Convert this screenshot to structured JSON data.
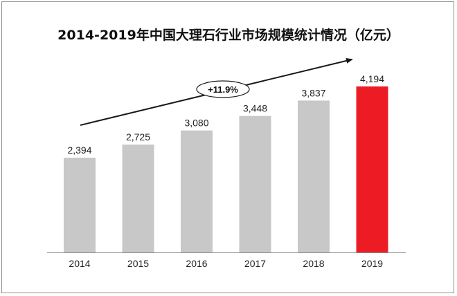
{
  "chart_data": {
    "type": "bar",
    "title": "2014-2019年中国大理石行业市场规模统计情况（亿元）",
    "categories": [
      "2014",
      "2015",
      "2016",
      "2017",
      "2018",
      "2019"
    ],
    "values": [
      2394,
      2725,
      3080,
      3448,
      3837,
      4194
    ],
    "value_labels": [
      "2,394",
      "2,725",
      "3,080",
      "3,448",
      "3,837",
      "4,194"
    ],
    "annotation": "+11.9%",
    "ylim": [
      0,
      4194
    ],
    "grid": false,
    "legend": "none",
    "colors": {
      "bar": "#c8c8c8",
      "highlight": "#ed1c24",
      "axis": "#8c8c8c",
      "arrow": "#1a1a1a"
    },
    "highlight_index": 5
  }
}
